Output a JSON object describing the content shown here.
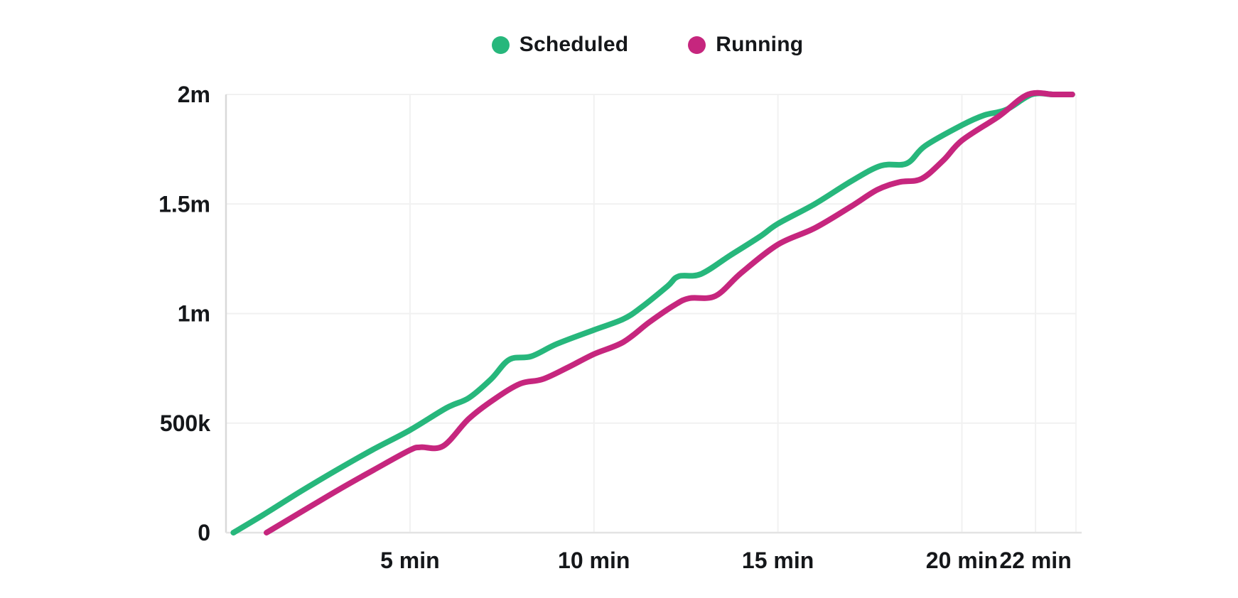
{
  "legend": {
    "items": [
      {
        "label": "Scheduled",
        "color": "#27b77c"
      },
      {
        "label": "Running",
        "color": "#c6267e"
      }
    ]
  },
  "chart_data": {
    "type": "line",
    "title": "",
    "xlabel": "",
    "ylabel": "",
    "x_unit": "minutes",
    "y_unit": "count",
    "xlim": [
      0,
      23.1
    ],
    "ylim": [
      0,
      2000000
    ],
    "grid": true,
    "legend_position": "top-center",
    "x_ticks": [
      {
        "t": 5,
        "label": "5 min"
      },
      {
        "t": 10,
        "label": "10 min"
      },
      {
        "t": 15,
        "label": "15 min"
      },
      {
        "t": 20,
        "label": "20 min"
      },
      {
        "t": 22,
        "label": "22 min"
      }
    ],
    "y_ticks": [
      {
        "v": 0,
        "label": "0"
      },
      {
        "v": 500000,
        "label": "500k"
      },
      {
        "v": 1000000,
        "label": "1m"
      },
      {
        "v": 1500000,
        "label": "1.5m"
      },
      {
        "v": 2000000,
        "label": "2m"
      }
    ],
    "series": [
      {
        "name": "Scheduled",
        "color": "#27b77c",
        "points": [
          [
            0.2,
            0
          ],
          [
            1,
            80000
          ],
          [
            2,
            185000
          ],
          [
            3,
            285000
          ],
          [
            4,
            380000
          ],
          [
            5,
            468000
          ],
          [
            6,
            570000
          ],
          [
            6.6,
            615000
          ],
          [
            7.2,
            700000
          ],
          [
            7.7,
            790000
          ],
          [
            8.3,
            805000
          ],
          [
            9,
            862000
          ],
          [
            10,
            925000
          ],
          [
            10.8,
            975000
          ],
          [
            11.3,
            1030000
          ],
          [
            12,
            1125000
          ],
          [
            12.3,
            1170000
          ],
          [
            12.9,
            1180000
          ],
          [
            13.7,
            1265000
          ],
          [
            14.5,
            1350000
          ],
          [
            15,
            1410000
          ],
          [
            16,
            1500000
          ],
          [
            17,
            1605000
          ],
          [
            17.8,
            1675000
          ],
          [
            18.5,
            1685000
          ],
          [
            19,
            1765000
          ],
          [
            20,
            1860000
          ],
          [
            20.6,
            1905000
          ],
          [
            21.2,
            1930000
          ],
          [
            21.9,
            2000000
          ],
          [
            22.5,
            2000000
          ],
          [
            23,
            2000000
          ]
        ]
      },
      {
        "name": "Running",
        "color": "#c6267e",
        "points": [
          [
            1.1,
            0
          ],
          [
            2,
            90000
          ],
          [
            3,
            190000
          ],
          [
            4,
            285000
          ],
          [
            5,
            377000
          ],
          [
            5.3,
            390000
          ],
          [
            5.9,
            395000
          ],
          [
            6.6,
            520000
          ],
          [
            7.3,
            610000
          ],
          [
            8,
            680000
          ],
          [
            8.6,
            700000
          ],
          [
            9.3,
            755000
          ],
          [
            10,
            815000
          ],
          [
            10.8,
            870000
          ],
          [
            11.5,
            960000
          ],
          [
            12.2,
            1040000
          ],
          [
            12.6,
            1070000
          ],
          [
            13.3,
            1080000
          ],
          [
            14,
            1185000
          ],
          [
            15,
            1315000
          ],
          [
            16,
            1390000
          ],
          [
            17,
            1490000
          ],
          [
            17.7,
            1565000
          ],
          [
            18.3,
            1600000
          ],
          [
            18.9,
            1615000
          ],
          [
            19.5,
            1700000
          ],
          [
            20,
            1790000
          ],
          [
            21,
            1900000
          ],
          [
            21.8,
            2000000
          ],
          [
            22.5,
            2000000
          ],
          [
            23,
            2000000
          ]
        ]
      }
    ]
  }
}
